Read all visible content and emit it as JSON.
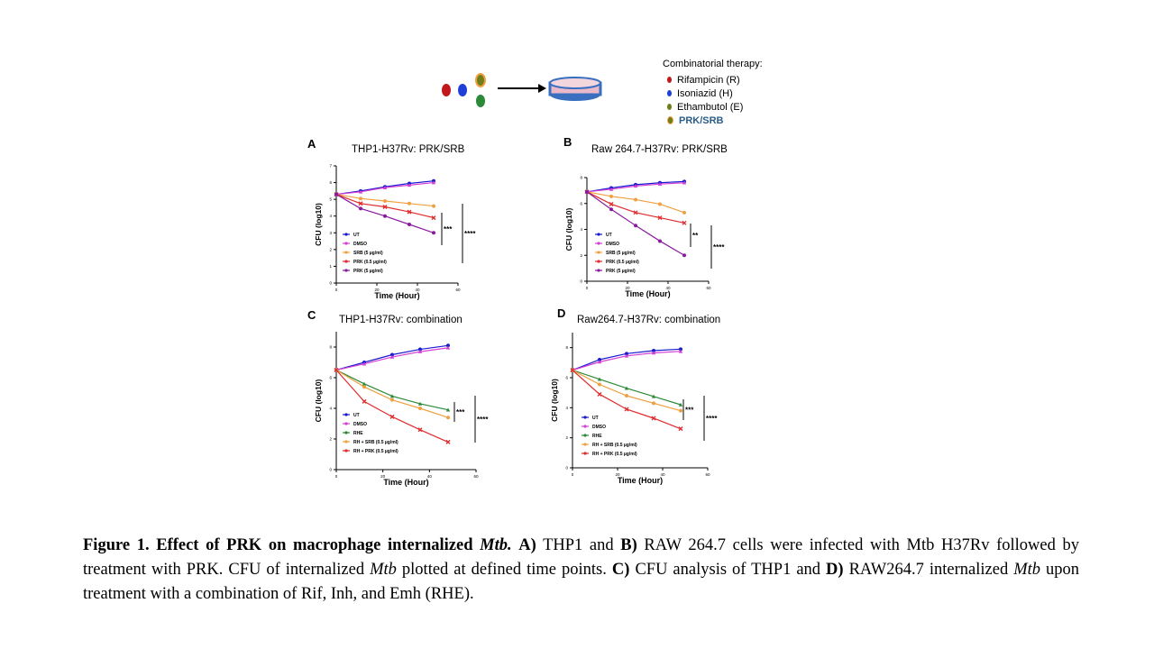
{
  "header": {
    "legend_title": "Combinatorial therapy:",
    "legend_items": [
      {
        "label": "Rifampicin (R)",
        "color": "#c0181c"
      },
      {
        "label": "Isoniazid (H)",
        "color": "#1f3fd8"
      },
      {
        "label": "Ethambutol (E)",
        "color": "#6e7f1a"
      },
      {
        "label": "PRK/SRB",
        "color": "#2a5d8a",
        "bold": true
      }
    ]
  },
  "colors": {
    "UT": "#1a1ad0",
    "DMSO": "#d43fd4",
    "SRB": "#f0a040",
    "PRK05": "#e02b2b",
    "PRK5": "#8a1aa0",
    "RHE": "#2a8a3a",
    "RHSRB": "#f0a040",
    "RHPRK": "#e02b2b"
  },
  "chart_data": [
    {
      "panel": "A",
      "title": "THP1-H37Rv: PRK/SRB",
      "type": "line",
      "xlabel": "Time (Hour)",
      "ylabel": "CFU (log10)",
      "xlim": [
        0,
        60
      ],
      "ylim": [
        0,
        7
      ],
      "xticks": [
        "0",
        "20",
        "40",
        "60"
      ],
      "yticks": [
        "0",
        "1",
        "2",
        "3",
        "4",
        "5",
        "6",
        "7"
      ],
      "x": [
        0,
        12,
        24,
        36,
        48
      ],
      "series": [
        {
          "name": "UT",
          "key": "UT",
          "marker": "circle",
          "values": [
            5.3,
            5.5,
            5.75,
            5.95,
            6.1
          ]
        },
        {
          "name": "DMSO",
          "key": "DMSO",
          "marker": "triangle",
          "values": [
            5.3,
            5.45,
            5.7,
            5.85,
            6.0
          ]
        },
        {
          "name": "SRB (5 µg/ml)",
          "key": "SRB",
          "marker": "circle",
          "values": [
            5.3,
            5.05,
            4.9,
            4.75,
            4.6
          ]
        },
        {
          "name": "PRK (0.5 µg/ml)",
          "key": "PRK05",
          "marker": "cross",
          "values": [
            5.3,
            4.75,
            4.55,
            4.25,
            3.9
          ]
        },
        {
          "name": "PRK (5 µg/ml)",
          "key": "PRK5",
          "marker": "circle",
          "values": [
            5.3,
            4.45,
            4.0,
            3.5,
            3.0
          ]
        }
      ],
      "annotations": [
        "***",
        "****"
      ]
    },
    {
      "panel": "B",
      "title": "Raw 264.7-H37Rv: PRK/SRB",
      "type": "line",
      "xlabel": "Time (Hour)",
      "ylabel": "CFU (log10)",
      "xlim": [
        0,
        60
      ],
      "ylim": [
        0,
        8
      ],
      "xticks": [
        "0",
        "20",
        "40",
        "60"
      ],
      "yticks": [
        "0",
        "2",
        "4",
        "6",
        "8"
      ],
      "x": [
        0,
        12,
        24,
        36,
        48
      ],
      "series": [
        {
          "name": "UT",
          "key": "UT",
          "marker": "circle",
          "values": [
            6.9,
            7.2,
            7.45,
            7.6,
            7.7
          ]
        },
        {
          "name": "DMSO",
          "key": "DMSO",
          "marker": "triangle",
          "values": [
            6.9,
            7.1,
            7.35,
            7.5,
            7.6
          ]
        },
        {
          "name": "SRB (5 µg/ml)",
          "key": "SRB",
          "marker": "circle",
          "values": [
            6.9,
            6.55,
            6.3,
            5.95,
            5.3
          ]
        },
        {
          "name": "PRK (0.5 µg/ml)",
          "key": "PRK05",
          "marker": "cross",
          "values": [
            6.9,
            5.95,
            5.3,
            4.9,
            4.5
          ]
        },
        {
          "name": "PRK (5 µg/ml)",
          "key": "PRK5",
          "marker": "circle",
          "values": [
            6.9,
            5.55,
            4.3,
            3.1,
            2.0
          ]
        }
      ],
      "annotations": [
        "**",
        "****"
      ]
    },
    {
      "panel": "C",
      "title": "THP1-H37Rv: combination",
      "type": "line",
      "xlabel": "Time (Hour)",
      "ylabel": "CFU (log10)",
      "xlim": [
        0,
        60
      ],
      "ylim": [
        0,
        9
      ],
      "xticks": [
        "0",
        "20",
        "40",
        "60"
      ],
      "yticks": [
        "0",
        "2",
        "4",
        "6",
        "8"
      ],
      "x": [
        0,
        12,
        24,
        36,
        48
      ],
      "series": [
        {
          "name": "UT",
          "key": "UT",
          "marker": "circle",
          "values": [
            6.5,
            7.0,
            7.5,
            7.85,
            8.1
          ]
        },
        {
          "name": "DMSO",
          "key": "DMSO",
          "marker": "triangle",
          "values": [
            6.5,
            6.9,
            7.35,
            7.7,
            7.95
          ]
        },
        {
          "name": "RHE",
          "key": "RHE",
          "marker": "triangle",
          "values": [
            6.5,
            5.6,
            4.8,
            4.3,
            3.9
          ]
        },
        {
          "name": "RH + SRB (0.5 µg/ml)",
          "key": "RHSRB",
          "marker": "circle",
          "values": [
            6.5,
            5.4,
            4.55,
            4.0,
            3.4
          ]
        },
        {
          "name": "RH + PRK (0.5 µg/ml)",
          "key": "RHPRK",
          "marker": "cross",
          "values": [
            6.5,
            4.45,
            3.45,
            2.6,
            1.8
          ]
        }
      ],
      "annotations": [
        "***",
        "****"
      ]
    },
    {
      "panel": "D",
      "title": "Raw264.7-H37Rv: combination",
      "type": "line",
      "xlabel": "Time (Hour)",
      "ylabel": "CFU (log10)",
      "xlim": [
        0,
        60
      ],
      "ylim": [
        0,
        9
      ],
      "xticks": [
        "0",
        "20",
        "40",
        "60"
      ],
      "yticks": [
        "0",
        "2",
        "4",
        "6",
        "8"
      ],
      "x": [
        0,
        12,
        24,
        36,
        48
      ],
      "series": [
        {
          "name": "UT",
          "key": "UT",
          "marker": "circle",
          "values": [
            6.5,
            7.2,
            7.6,
            7.8,
            7.9
          ]
        },
        {
          "name": "DMSO",
          "key": "DMSO",
          "marker": "triangle",
          "values": [
            6.5,
            7.05,
            7.45,
            7.65,
            7.75
          ]
        },
        {
          "name": "RHE",
          "key": "RHE",
          "marker": "triangle",
          "values": [
            6.5,
            5.9,
            5.3,
            4.75,
            4.2
          ]
        },
        {
          "name": "RH + SRB (0.5 µg/ml)",
          "key": "RHSRB",
          "marker": "circle",
          "values": [
            6.5,
            5.55,
            4.8,
            4.3,
            3.8
          ]
        },
        {
          "name": "RH + PRK (0.5 µg/ml)",
          "key": "RHPRK",
          "marker": "cross",
          "values": [
            6.5,
            4.9,
            3.9,
            3.3,
            2.6
          ]
        }
      ],
      "annotations": [
        "***",
        "****"
      ]
    }
  ],
  "caption": {
    "fig_label": "Figure 1. Effect of PRK on macrophage internalized ",
    "fig_label_italic": "Mtb.",
    "a_label": "A)",
    "t1": "THP1 and",
    "b_label": "B)",
    "t2": "RAW 264.7 cells were infected with Mtb H37Rv followed by treatment with PRK. CFU of internalized ",
    "mtb1": "Mtb",
    "t3": " plotted at defined time points.",
    "c_label": "C)",
    "t4": "CFU analysis of THP1 and",
    "d_label": "D)",
    "t5": "RAW264.7 internalized ",
    "mtb2": "Mtb",
    "t6": " upon treatment with a combination of Rif, Inh, and Emh (RHE)."
  }
}
